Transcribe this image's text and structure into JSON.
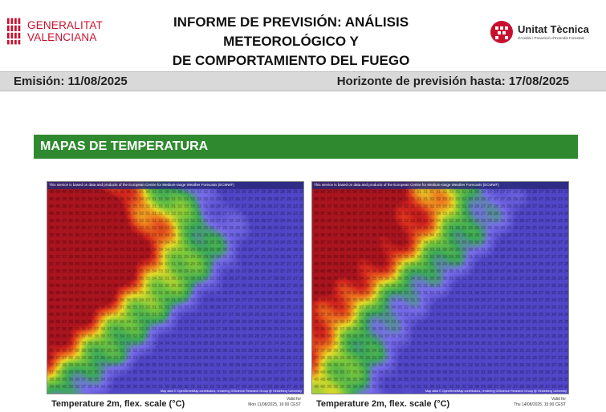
{
  "header": {
    "org_left_line1": "GENERALITAT",
    "org_left_line2": "VALENCIANA",
    "title_line1": "INFORME DE PREVISIÓN: ANÁLISIS METEOROLÓGICO Y",
    "title_line2": "DE COMPORTAMIENTO DEL FUEGO",
    "org_right_title": "Unitat Tècnica",
    "org_right_sub": "d'Anàlisi i Prevenció d'Incendis Forestals"
  },
  "band": {
    "emision": "Emisión: 11/08/2025",
    "horizonte_label": "Horizonte de previsión hasta: ",
    "horizonte_value": "17/08/2025"
  },
  "section": {
    "title": "MAPAS DE TEMPERATURA"
  },
  "maps": [
    {
      "credit": "This service is based on data and products of the European Centre for Medium-range Weather Forecasts (ECMWF)",
      "attribution": "Map data © OpenStreetMap contributors, rendering GIScience Research Group @ Heidelberg University",
      "scale_label": "Temperature 2m, flex. scale (°C)",
      "valid_label": "Valid for",
      "valid_time": "Mon 11/08/2025, 16:00 CEST"
    },
    {
      "credit": "This service is based on data and products of the European Centre for Medium-range Weather Forecasts (ECMWF)",
      "attribution": "Map data © OpenStreetMap contributors, rendering GIScience Research Group @ Heidelberg University",
      "scale_label": "Temperature 2m, flex. scale (°C)",
      "valid_label": "Valid for",
      "valid_time": "Thu 14/08/2025, 15:00 CEST"
    }
  ],
  "colors": {
    "brand_red": "#c8102e",
    "section_green": "#2f8a2f",
    "band_grey": "#d9d9d9"
  }
}
